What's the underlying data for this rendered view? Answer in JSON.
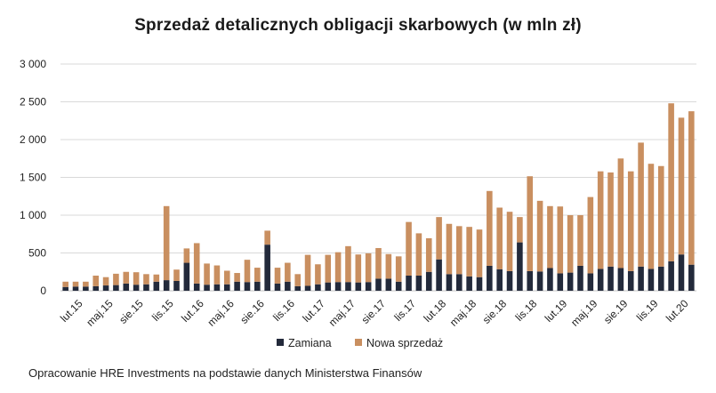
{
  "chart_data": {
    "type": "bar",
    "stacked": true,
    "title": "Sprzedaż detalicznych obligacji skarbowych (w mln zł)",
    "xlabel": "",
    "ylabel": "",
    "ylim": [
      0,
      3000
    ],
    "yticks": [
      0,
      500,
      1000,
      1500,
      2000,
      2500,
      3000
    ],
    "ytick_labels": [
      "0",
      "500",
      "1 000",
      "1 500",
      "2 000",
      "2 500",
      "3 000"
    ],
    "grid": true,
    "legend": "bottom-center",
    "categories": [
      "sty.15",
      "lut.15",
      "mar.15",
      "kwi.15",
      "maj.15",
      "cze.15",
      "lip.15",
      "sie.15",
      "wrz.15",
      "paź.15",
      "lis.15",
      "gru.15",
      "sty.16",
      "lut.16",
      "mar.16",
      "kwi.16",
      "maj.16",
      "cze.16",
      "lip.16",
      "sie.16",
      "wrz.16",
      "paź.16",
      "lis.16",
      "gru.16",
      "sty.17",
      "lut.17",
      "mar.17",
      "kwi.17",
      "maj.17",
      "cze.17",
      "lip.17",
      "sie.17",
      "wrz.17",
      "paź.17",
      "lis.17",
      "gru.17",
      "sty.18",
      "lut.18",
      "mar.18",
      "kwi.18",
      "maj.18",
      "cze.18",
      "lip.18",
      "sie.18",
      "wrz.18",
      "paź.18",
      "lis.18",
      "gru.18",
      "sty.19",
      "lut.19",
      "mar.19",
      "kwi.19",
      "maj.19",
      "cze.19",
      "lip.19",
      "sie.19",
      "wrz.19",
      "paź.19",
      "lis.19",
      "gru.19",
      "sty.20",
      "lut.20",
      "mar.20"
    ],
    "x_tick_labels": [
      "lut.15",
      "maj.15",
      "sie.15",
      "lis.15",
      "lut.16",
      "maj.16",
      "sie.16",
      "lis.16",
      "lut.17",
      "maj.17",
      "sie.17",
      "lis.17",
      "lut.18",
      "maj.18",
      "sie.18",
      "lis.18",
      "lut.19",
      "maj.19",
      "sie.19",
      "lis.19",
      "lut.20"
    ],
    "x_tick_start": 1,
    "x_tick_step": 3,
    "series": [
      {
        "name": "Zamiana",
        "color": "#232a3b",
        "values": [
          50,
          55,
          55,
          60,
          70,
          75,
          95,
          80,
          85,
          120,
          140,
          130,
          370,
          95,
          80,
          85,
          85,
          120,
          115,
          120,
          610,
          95,
          120,
          60,
          65,
          85,
          110,
          115,
          115,
          110,
          115,
          160,
          160,
          120,
          200,
          200,
          250,
          415,
          220,
          220,
          190,
          180,
          330,
          285,
          260,
          640,
          260,
          255,
          300,
          230,
          240,
          330,
          230,
          290,
          320,
          300,
          260,
          320,
          290,
          320,
          390,
          480,
          345
        ]
      },
      {
        "name": "Nowa sprzedaż",
        "color": "#c98f60",
        "values": [
          70,
          65,
          65,
          140,
          110,
          150,
          155,
          165,
          135,
          95,
          980,
          150,
          190,
          535,
          280,
          250,
          180,
          115,
          295,
          185,
          185,
          210,
          250,
          160,
          410,
          265,
          365,
          395,
          475,
          370,
          380,
          405,
          325,
          335,
          710,
          560,
          445,
          560,
          665,
          635,
          655,
          630,
          990,
          815,
          785,
          335,
          1255,
          935,
          820,
          885,
          760,
          670,
          1010,
          1290,
          1245,
          1450,
          1320,
          1640,
          1390,
          1330,
          2090,
          1810,
          2030
        ]
      }
    ]
  },
  "source": "Opracowanie HRE Investments na podstawie danych Ministerstwa Finansów"
}
